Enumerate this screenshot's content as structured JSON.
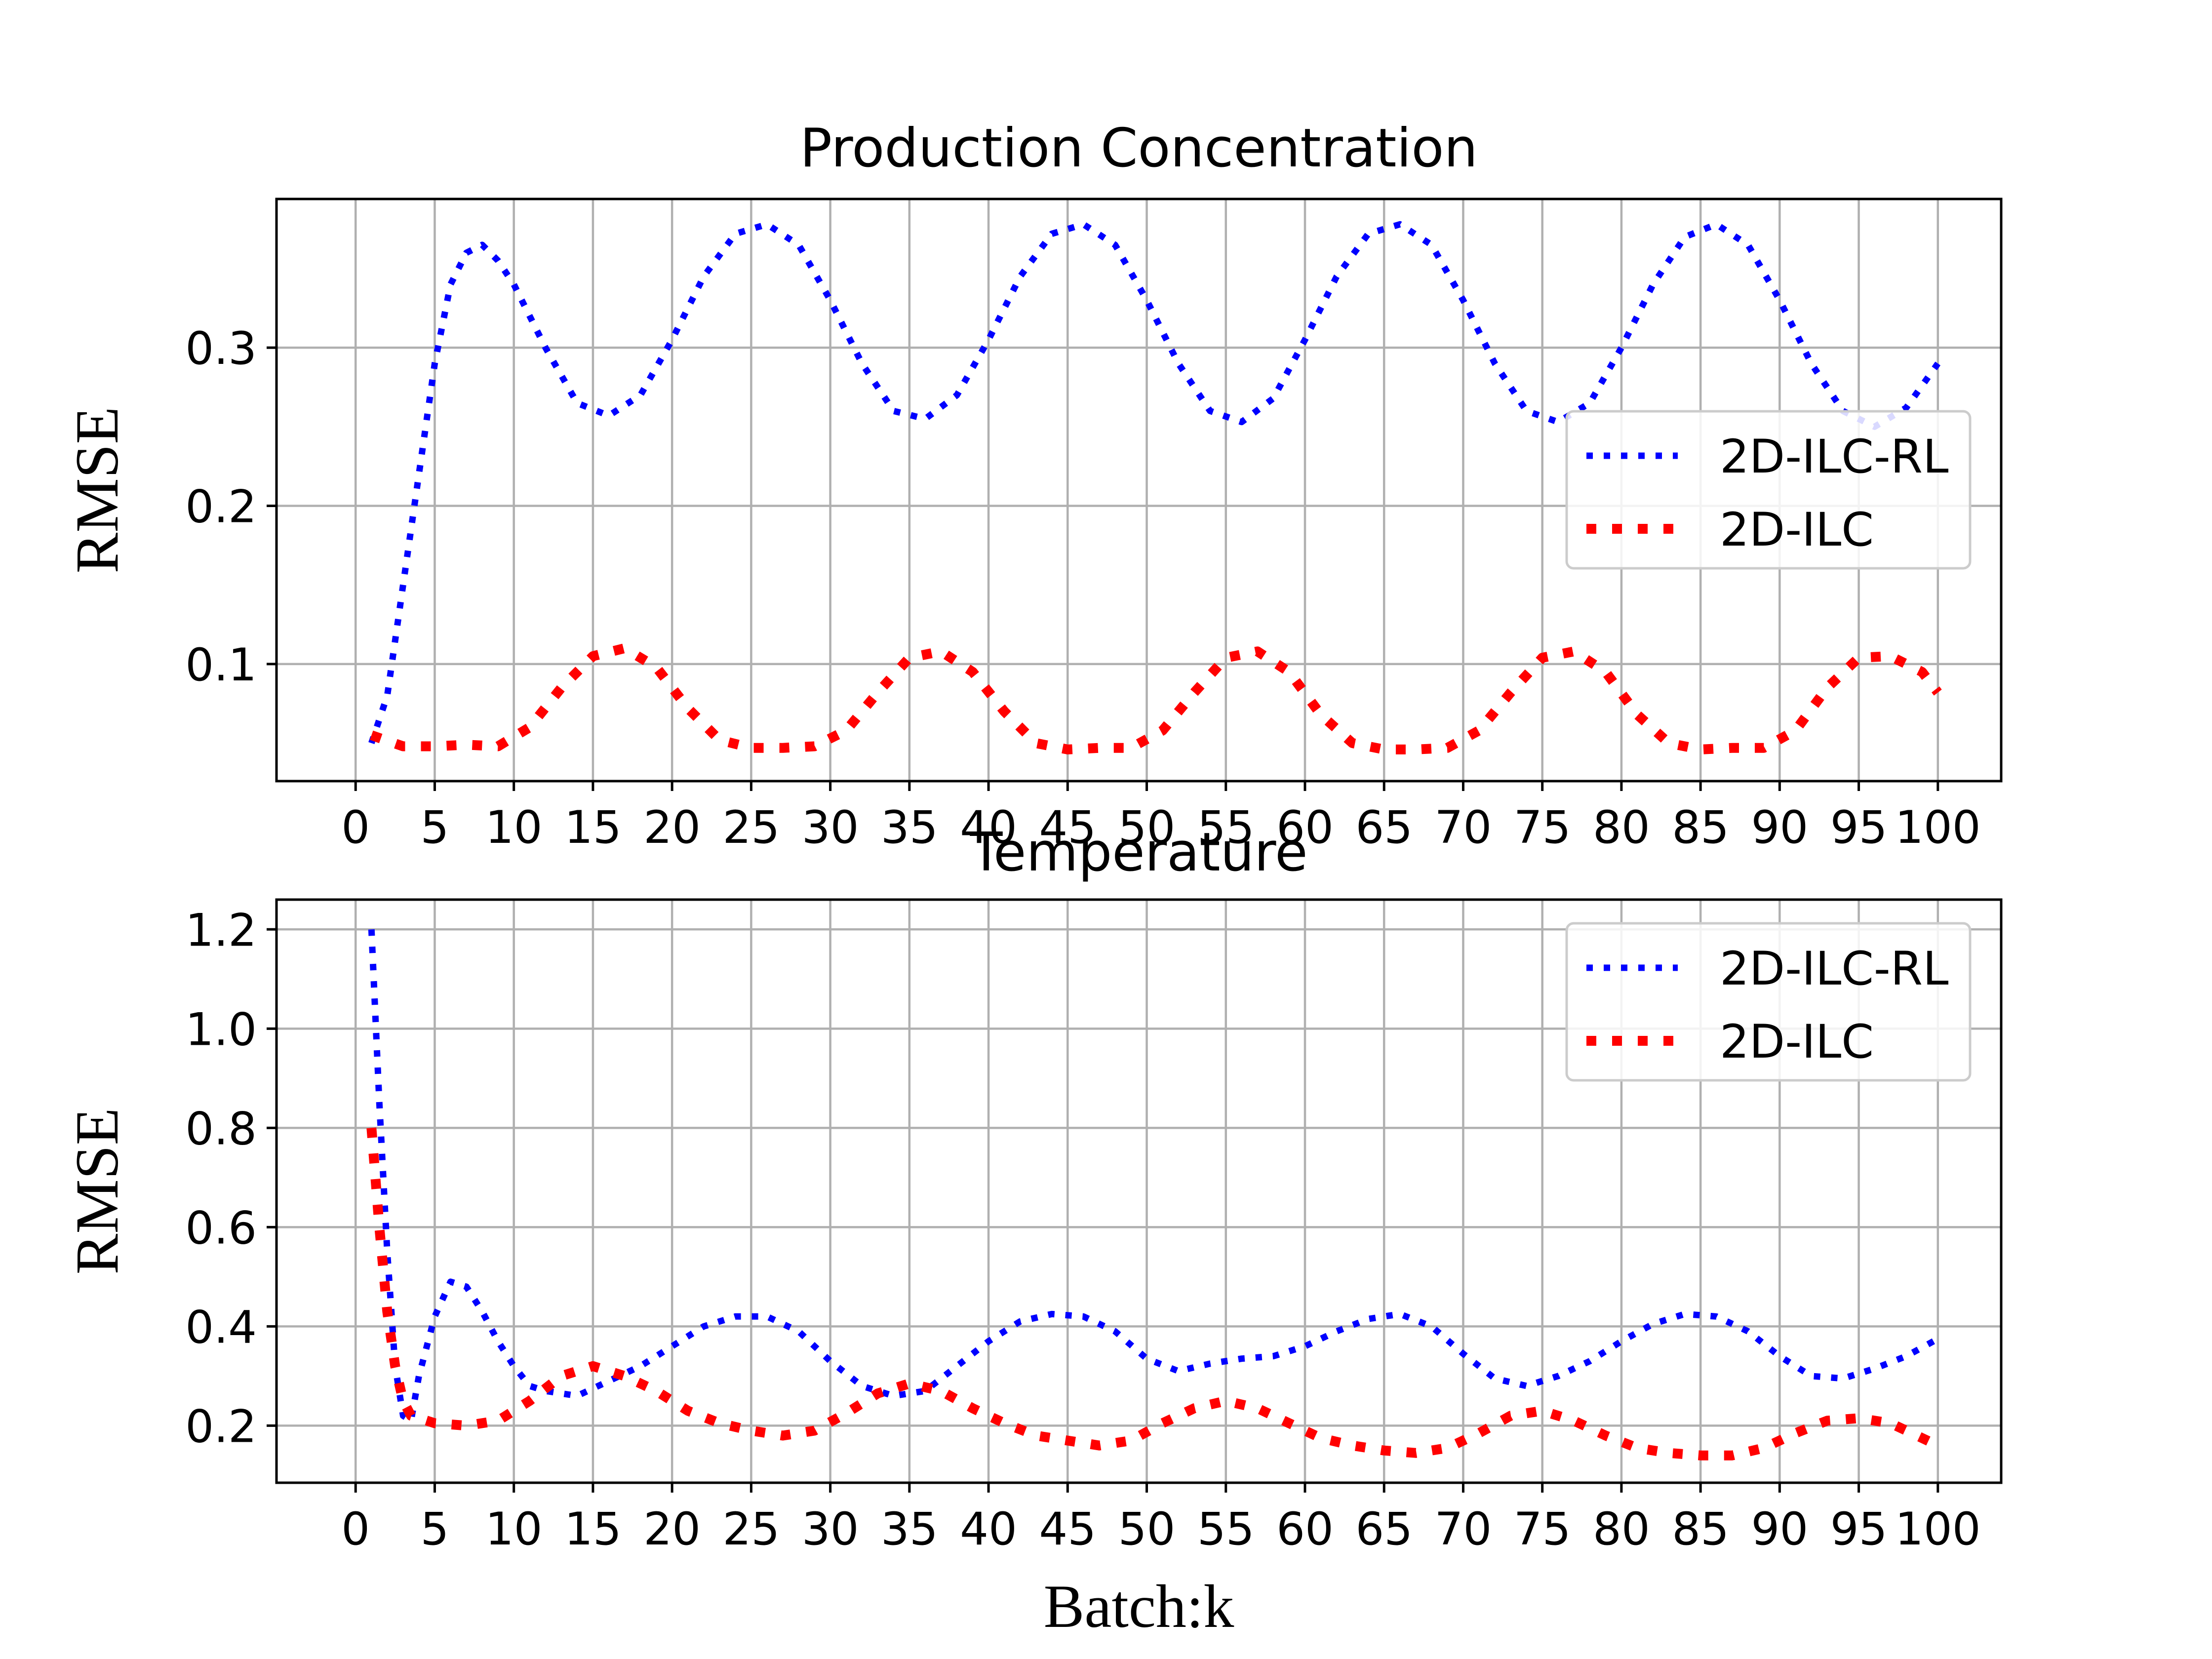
{
  "chart_data": [
    {
      "type": "line",
      "title": "Production Concentration",
      "xlabel": "Batch:k",
      "ylabel": "RMSE",
      "xlim": [
        -5,
        104
      ],
      "ylim": [
        0.026,
        0.394
      ],
      "xticks": [
        0,
        5,
        10,
        15,
        20,
        25,
        30,
        35,
        40,
        45,
        50,
        55,
        60,
        65,
        70,
        75,
        80,
        85,
        90,
        95,
        100
      ],
      "yticks": [
        0.1,
        0.2,
        0.3
      ],
      "ytick_labels": [
        "0.1",
        "0.2",
        "0.3"
      ],
      "grid": true,
      "legend_position": "center-right",
      "series": [
        {
          "name": "2D-ILC-RL",
          "color": "#0000ff",
          "style": "dotted",
          "x": [
            1,
            2,
            3,
            4,
            5,
            6,
            7,
            8,
            9,
            10,
            12,
            14,
            16,
            18,
            20,
            22,
            24,
            26,
            28,
            30,
            32,
            34,
            36,
            38,
            40,
            42,
            44,
            46,
            48,
            50,
            52,
            54,
            56,
            58,
            60,
            62,
            64,
            66,
            68,
            70,
            72,
            74,
            76,
            78,
            80,
            82,
            84,
            86,
            88,
            90,
            92,
            94,
            96,
            98,
            100
          ],
          "y": [
            0.05,
            0.08,
            0.15,
            0.22,
            0.29,
            0.34,
            0.36,
            0.365,
            0.355,
            0.34,
            0.3,
            0.265,
            0.257,
            0.27,
            0.305,
            0.345,
            0.372,
            0.378,
            0.365,
            0.33,
            0.29,
            0.26,
            0.255,
            0.27,
            0.305,
            0.345,
            0.372,
            0.378,
            0.365,
            0.33,
            0.29,
            0.26,
            0.253,
            0.268,
            0.305,
            0.345,
            0.372,
            0.378,
            0.365,
            0.33,
            0.29,
            0.26,
            0.253,
            0.265,
            0.3,
            0.34,
            0.37,
            0.378,
            0.365,
            0.33,
            0.29,
            0.26,
            0.25,
            0.262,
            0.29
          ]
        },
        {
          "name": "2D-ILC",
          "color": "#ff0000",
          "style": "dotted-thick",
          "x": [
            1,
            3,
            5,
            7,
            9,
            11,
            13,
            15,
            17,
            19,
            21,
            23,
            25,
            27,
            29,
            31,
            33,
            35,
            37,
            39,
            41,
            43,
            45,
            47,
            49,
            51,
            53,
            55,
            57,
            59,
            61,
            63,
            65,
            67,
            69,
            71,
            73,
            75,
            77,
            79,
            81,
            83,
            85,
            87,
            89,
            91,
            93,
            95,
            97,
            99,
            100
          ],
          "y": [
            0.055,
            0.048,
            0.048,
            0.049,
            0.048,
            0.06,
            0.085,
            0.105,
            0.11,
            0.098,
            0.072,
            0.052,
            0.047,
            0.047,
            0.048,
            0.058,
            0.082,
            0.104,
            0.108,
            0.095,
            0.07,
            0.05,
            0.046,
            0.047,
            0.047,
            0.058,
            0.082,
            0.104,
            0.108,
            0.095,
            0.068,
            0.05,
            0.046,
            0.046,
            0.047,
            0.058,
            0.082,
            0.104,
            0.108,
            0.095,
            0.068,
            0.05,
            0.046,
            0.047,
            0.047,
            0.058,
            0.085,
            0.104,
            0.105,
            0.095,
            0.082
          ]
        }
      ]
    },
    {
      "type": "line",
      "title": "Temperature",
      "xlabel": "Batch:k",
      "ylabel": "RMSE",
      "xlim": [
        -5,
        104
      ],
      "ylim": [
        0.085,
        1.26
      ],
      "xticks": [
        0,
        5,
        10,
        15,
        20,
        25,
        30,
        35,
        40,
        45,
        50,
        55,
        60,
        65,
        70,
        75,
        80,
        85,
        90,
        95,
        100
      ],
      "yticks": [
        0.2,
        0.4,
        0.6,
        0.8,
        1.0,
        1.2
      ],
      "ytick_labels": [
        "0.2",
        "0.4",
        "0.6",
        "0.8",
        "1.0",
        "1.2"
      ],
      "grid": true,
      "legend_position": "top-right",
      "series": [
        {
          "name": "2D-ILC-RL",
          "color": "#0000ff",
          "style": "dotted",
          "x": [
            1,
            1.5,
            2,
            2.5,
            3,
            3.5,
            4,
            5,
            6,
            7,
            8,
            9,
            10,
            11,
            12,
            14,
            16,
            18,
            20,
            22,
            24,
            26,
            28,
            30,
            32,
            34,
            36,
            38,
            40,
            42,
            44,
            46,
            48,
            50,
            52,
            54,
            56,
            58,
            60,
            62,
            64,
            66,
            68,
            70,
            72,
            74,
            76,
            78,
            80,
            82,
            84,
            86,
            88,
            90,
            92,
            94,
            96,
            98,
            100
          ],
          "y": [
            1.2,
            0.85,
            0.55,
            0.32,
            0.22,
            0.21,
            0.3,
            0.42,
            0.49,
            0.48,
            0.43,
            0.37,
            0.32,
            0.28,
            0.27,
            0.26,
            0.29,
            0.32,
            0.36,
            0.4,
            0.42,
            0.42,
            0.39,
            0.33,
            0.28,
            0.26,
            0.27,
            0.32,
            0.37,
            0.41,
            0.425,
            0.42,
            0.39,
            0.335,
            0.31,
            0.325,
            0.335,
            0.34,
            0.36,
            0.39,
            0.415,
            0.425,
            0.4,
            0.345,
            0.295,
            0.28,
            0.3,
            0.33,
            0.37,
            0.405,
            0.425,
            0.42,
            0.39,
            0.34,
            0.3,
            0.295,
            0.315,
            0.34,
            0.375
          ]
        },
        {
          "name": "2D-ILC",
          "color": "#ff0000",
          "style": "dotted-thick",
          "x": [
            1,
            1.5,
            2,
            2.5,
            3,
            3.5,
            4,
            5,
            7,
            9,
            11,
            13,
            15,
            17,
            19,
            21,
            23,
            25,
            27,
            29,
            31,
            33,
            35,
            37,
            39,
            41,
            43,
            45,
            47,
            49,
            51,
            53,
            55,
            57,
            59,
            61,
            63,
            65,
            67,
            69,
            71,
            73,
            75,
            77,
            79,
            81,
            83,
            85,
            87,
            89,
            91,
            93,
            95,
            97,
            99,
            100
          ],
          "y": [
            0.8,
            0.6,
            0.43,
            0.32,
            0.25,
            0.22,
            0.215,
            0.205,
            0.2,
            0.21,
            0.25,
            0.3,
            0.32,
            0.3,
            0.27,
            0.23,
            0.205,
            0.19,
            0.18,
            0.19,
            0.225,
            0.265,
            0.285,
            0.27,
            0.235,
            0.205,
            0.18,
            0.17,
            0.16,
            0.17,
            0.205,
            0.235,
            0.25,
            0.235,
            0.205,
            0.175,
            0.16,
            0.15,
            0.145,
            0.155,
            0.185,
            0.22,
            0.23,
            0.21,
            0.18,
            0.155,
            0.145,
            0.14,
            0.14,
            0.155,
            0.185,
            0.21,
            0.215,
            0.205,
            0.175,
            0.16
          ]
        }
      ]
    }
  ]
}
